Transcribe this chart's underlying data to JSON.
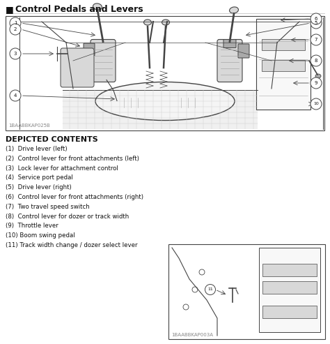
{
  "title": "Control Pedals and Levers",
  "title_marker": "■",
  "bg_color": "#ffffff",
  "depicted_contents_title": "DEPICTED CONTENTS",
  "items": [
    "(1)  Drive lever (left)",
    "(2)  Control lever for front attachments (left)",
    "(3)  Lock lever for attachment control",
    "(4)  Service port pedal",
    "(5)  Drive lever (right)",
    "(6)  Control lever for front attachments (right)",
    "(7)  Two travel speed switch",
    "(8)  Control lever for dozer or track width",
    "(9)  Throttle lever",
    "(10) Boom swing pedal",
    "(11) Track width change / dozer select lever"
  ],
  "watermark_main": "1BAABBKAP025B",
  "watermark_secondary": "1BAABBKAP003A",
  "line_color": "#444444",
  "text_color": "#111111",
  "gray_light": "#d8d8d8",
  "gray_medium": "#aaaaaa",
  "gray_dark": "#888888"
}
